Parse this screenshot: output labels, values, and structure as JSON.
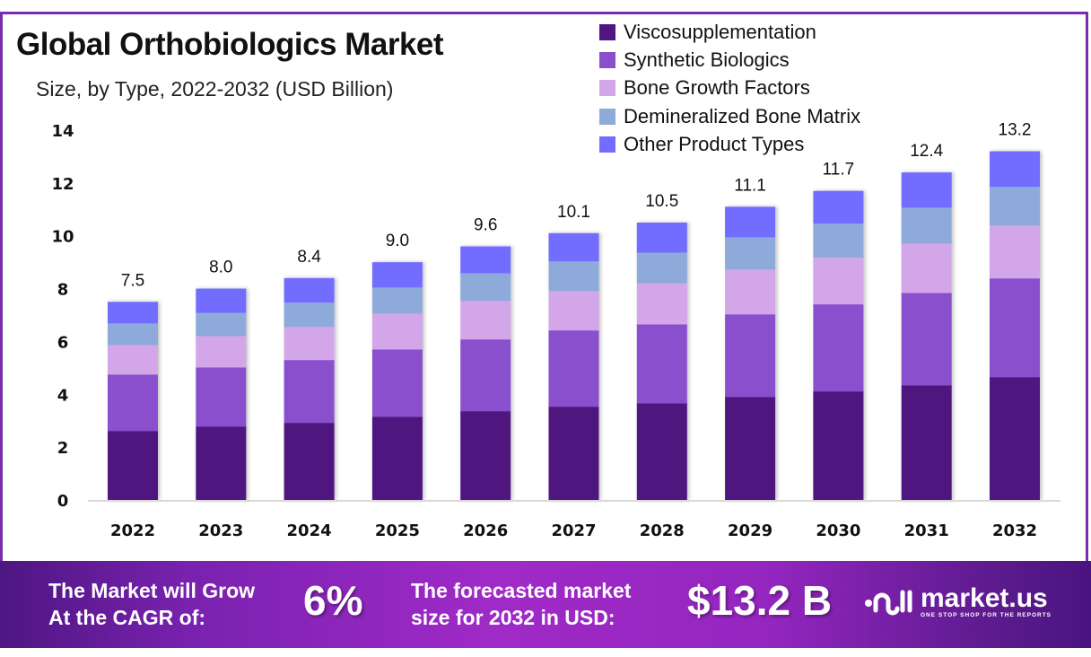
{
  "title": "Global Orthobiologics Market",
  "subtitle": "Size, by Type, 2022-2032 (USD Billion)",
  "chart_data": {
    "type": "bar",
    "stacked": true,
    "title": "Global Orthobiologics Market",
    "subtitle": "Size, by Type, 2022-2032 (USD Billion)",
    "xlabel": "",
    "ylabel": "",
    "ylim": [
      0,
      14
    ],
    "yticks": [
      0,
      2,
      4,
      6,
      8,
      10,
      12,
      14
    ],
    "grid": false,
    "legend_position": "top-right",
    "categories": [
      "2022",
      "2023",
      "2024",
      "2025",
      "2026",
      "2027",
      "2028",
      "2029",
      "2030",
      "2031",
      "2032"
    ],
    "totals": [
      7.5,
      8.0,
      8.4,
      9.0,
      9.6,
      10.1,
      10.5,
      11.1,
      11.7,
      12.4,
      13.2
    ],
    "total_labels": [
      "7.5",
      "8.0",
      "8.4",
      "9.0",
      "9.6",
      "10.1",
      "10.5",
      "11.1",
      "11.7",
      "12.4",
      "13.2"
    ],
    "series": [
      {
        "name": "Viscosupplementation",
        "color": "#4f1580",
        "values": [
          2.62,
          2.79,
          2.93,
          3.16,
          3.37,
          3.54,
          3.67,
          3.91,
          4.12,
          4.35,
          4.66
        ]
      },
      {
        "name": "Synthetic Biologics",
        "color": "#8a4fcc",
        "values": [
          2.14,
          2.24,
          2.38,
          2.55,
          2.72,
          2.89,
          2.99,
          3.13,
          3.3,
          3.5,
          3.74
        ]
      },
      {
        "name": "Bone Growth Factors",
        "color": "#d3a6ea",
        "values": [
          1.12,
          1.19,
          1.26,
          1.36,
          1.46,
          1.5,
          1.56,
          1.7,
          1.77,
          1.87,
          2.01
        ]
      },
      {
        "name": "Demineralized Bone Matrix",
        "color": "#8eaadb",
        "values": [
          0.82,
          0.88,
          0.92,
          0.99,
          1.05,
          1.12,
          1.16,
          1.22,
          1.29,
          1.36,
          1.46
        ]
      },
      {
        "name": "Other Product Types",
        "color": "#736dff",
        "values": [
          0.8,
          0.9,
          0.91,
          0.94,
          1.0,
          1.05,
          1.12,
          1.14,
          1.22,
          1.32,
          1.33
        ]
      }
    ]
  },
  "footer": {
    "cagr_text_line1": "The Market will Grow",
    "cagr_text_line2": "At the CAGR of:",
    "cagr_value": "6%",
    "forecast_text_line1": "The forecasted market",
    "forecast_text_line2": "size for 2032 in USD:",
    "forecast_value": "$13.2 B",
    "logo_name": "market.us",
    "logo_tagline": "ONE STOP SHOP FOR THE REPORTS"
  }
}
